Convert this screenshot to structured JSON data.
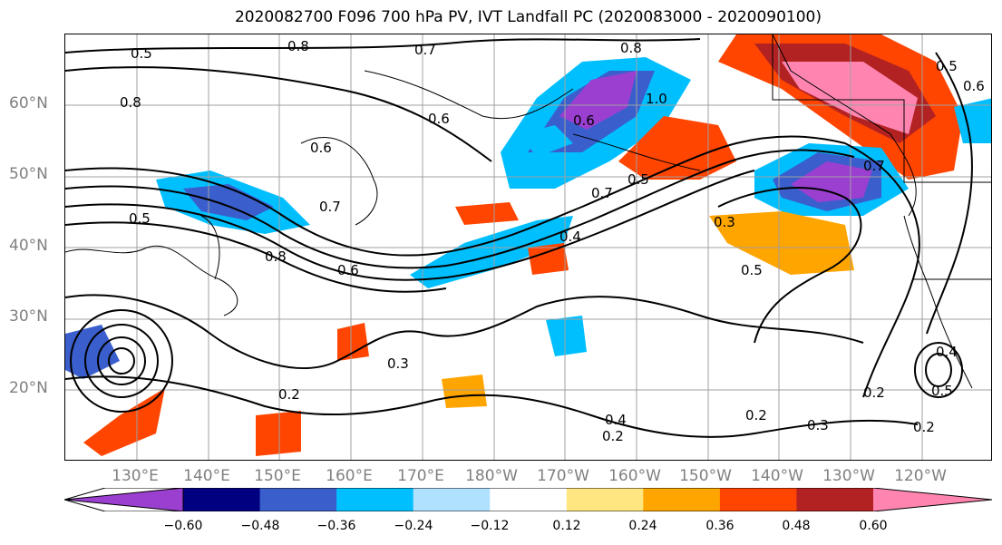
{
  "title": "2020082700 F096 700 hPa PV, IVT Landfall PC (2020083000 - 2020090100)",
  "map": {
    "projection": "equirectangular",
    "lon_range": [
      "120°E",
      "115°W"
    ],
    "lat_range": [
      "10°N",
      "70°N"
    ],
    "lat_labels": [
      "60°N",
      "50°N",
      "40°N",
      "30°N",
      "20°N"
    ],
    "lon_labels": [
      "130°E",
      "140°E",
      "150°E",
      "160°E",
      "170°E",
      "180°W",
      "170°W",
      "160°W",
      "150°W",
      "140°W",
      "130°W",
      "120°W"
    ],
    "gridlines": true,
    "contour_labels": [
      "0.5",
      "0.8",
      "0.6",
      "0.7",
      "0.8",
      "1.0",
      "0.8",
      "0.6",
      "0.6",
      "0.5",
      "0.7",
      "0.8",
      "0.6",
      "0.4",
      "0.7",
      "0.5",
      "0.3",
      "0.5",
      "0.7",
      "0.3",
      "0.2",
      "0.4",
      "0.2",
      "0.2",
      "0.3",
      "0.2",
      "0.2",
      "0.5",
      "0.4",
      "0.5",
      "0.6"
    ]
  },
  "colorbar": {
    "ticks": [
      "−0.60",
      "−0.48",
      "−0.36",
      "−0.24",
      "−0.12",
      "0.12",
      "0.24",
      "0.36",
      "0.48",
      "0.60"
    ],
    "colors": [
      "#9a3fcf",
      "#000080",
      "#3a5fcd",
      "#00bfff",
      "#b0e2ff",
      "#ffffff",
      "#ffe680",
      "#ffa500",
      "#ff4500",
      "#b22222",
      "#ff85b0"
    ]
  }
}
